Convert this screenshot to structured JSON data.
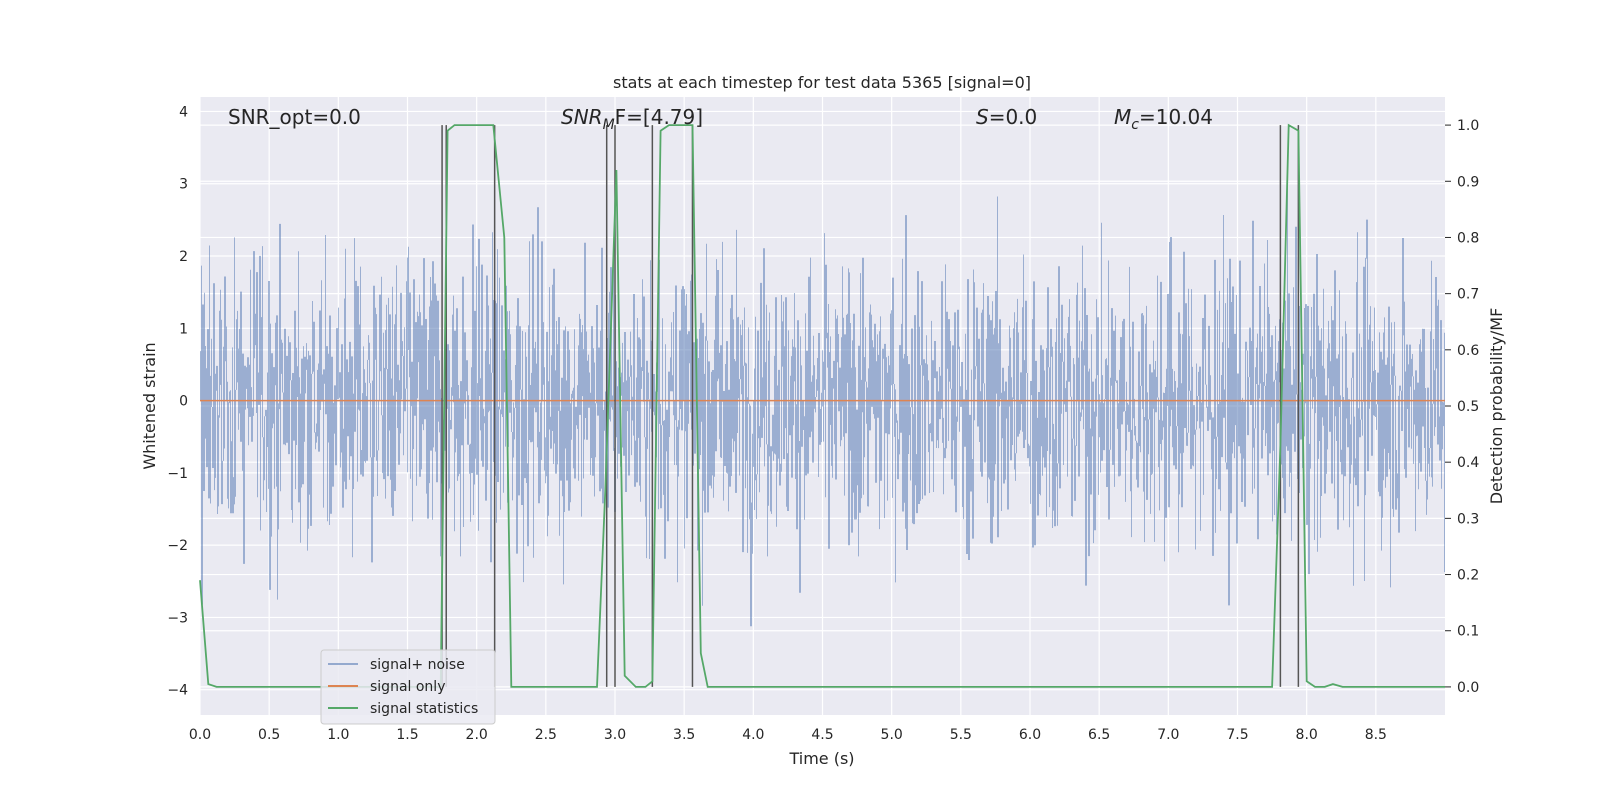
{
  "chart_data": {
    "type": "line",
    "title": "stats at each timestep for test data 5365 [signal=0]",
    "xlabel": "Time (s)",
    "ylabel_left": "Whitened strain",
    "ylabel_right": "Detection probability/MF",
    "xlim": [
      0.0,
      9.0
    ],
    "ylim_left": [
      -4.35,
      4.2
    ],
    "ylim_right": [
      -0.05,
      1.05
    ],
    "xticks": [
      "0.0",
      "0.5",
      "1.0",
      "1.5",
      "2.0",
      "2.5",
      "3.0",
      "3.5",
      "4.0",
      "4.5",
      "5.0",
      "5.5",
      "6.0",
      "6.5",
      "7.0",
      "7.5",
      "8.0",
      "8.5"
    ],
    "yticks_left": [
      "4",
      "3",
      "2",
      "1",
      "0",
      "−1",
      "−2",
      "−3",
      "−4"
    ],
    "yticks_right": [
      "1.0",
      "0.9",
      "0.8",
      "0.7",
      "0.6",
      "0.5",
      "0.4",
      "0.3",
      "0.2",
      "0.1",
      "0.0"
    ],
    "grid": true,
    "legend_position": "lower-left",
    "annotations": {
      "snr_opt": "SNR_opt=0.0",
      "snr_mf_main": "SNR",
      "snr_mf_sub": "M",
      "snr_mf_rest": "F=[4.79]",
      "s_main": "S",
      "s_rest": "=0.0",
      "mc_main": "M",
      "mc_sub": "c",
      "mc_rest": "=10.04"
    },
    "series": [
      {
        "name": "signal+ noise",
        "color": "#4c72b0",
        "axis": "left",
        "noise_band": [
          -1.7,
          1.4
        ],
        "peak_range": [
          -3.6,
          3.4
        ]
      },
      {
        "name": "signal only",
        "color": "#dd8452",
        "axis": "left",
        "x": [
          0.0,
          9.0
        ],
        "y": [
          0.0,
          0.0
        ]
      },
      {
        "name": "signal statistics",
        "color": "#55a868",
        "axis": "right",
        "x": [
          0.0,
          0.06,
          0.12,
          1.74,
          1.79,
          1.84,
          1.91,
          2.12,
          2.2,
          2.25,
          2.87,
          2.93,
          3.01,
          3.07,
          3.15,
          3.22,
          3.27,
          3.33,
          3.39,
          3.56,
          3.62,
          3.67,
          7.75,
          7.81,
          7.87,
          7.94,
          8.0,
          8.06,
          8.13,
          8.19,
          8.26,
          8.5,
          9.0
        ],
        "y": [
          0.19,
          0.005,
          0.0,
          0.0,
          0.99,
          1.0,
          1.0,
          1.0,
          0.8,
          0.0,
          0.0,
          0.35,
          0.92,
          0.02,
          0.0,
          0.0,
          0.01,
          0.99,
          1.0,
          1.0,
          0.06,
          0.0,
          0.0,
          0.43,
          1.0,
          0.99,
          0.01,
          0.0,
          0.0,
          0.005,
          0.0,
          0.0,
          0.0
        ]
      }
    ],
    "vlines": [
      1.75,
      1.78,
      2.13,
      2.94,
      3.0,
      3.27,
      3.56,
      7.81,
      7.94
    ]
  }
}
